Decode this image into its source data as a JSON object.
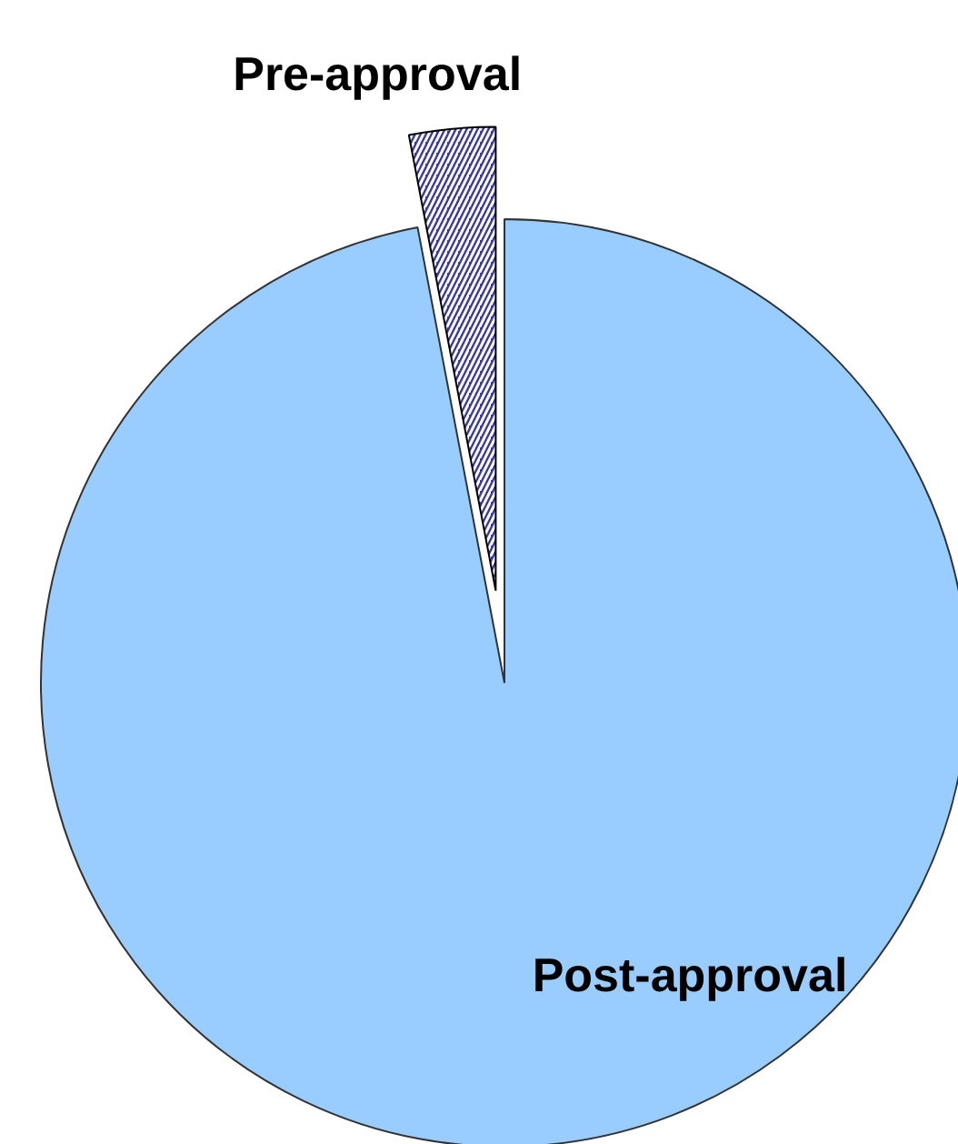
{
  "chart_data": {
    "type": "pie",
    "categories": [
      "Pre-approval",
      "Post-approval"
    ],
    "values": [
      3,
      97
    ],
    "colors": [
      "#3a3aa0",
      "#99ccff"
    ]
  }
}
